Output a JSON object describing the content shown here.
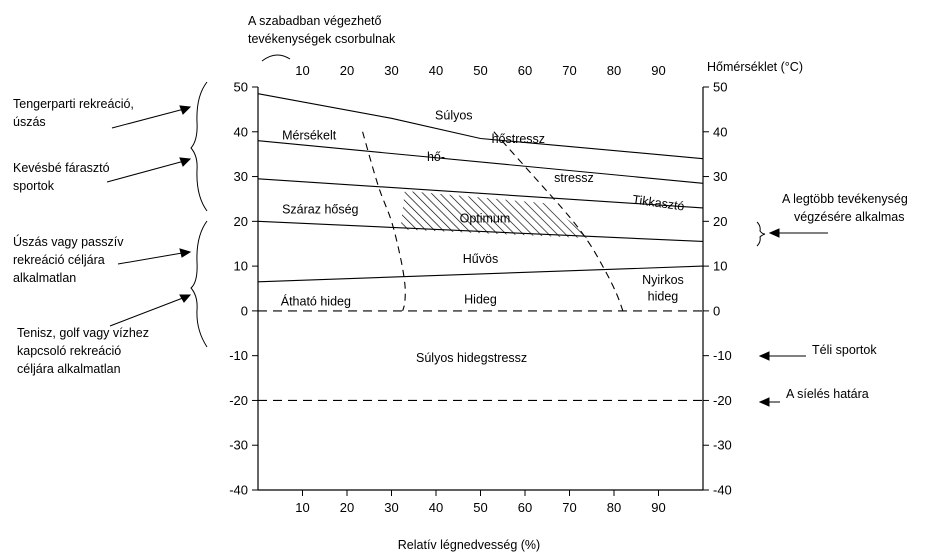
{
  "chart_data": {
    "type": "area",
    "title": "",
    "top_annotation": [
      "A szabadban végezhető",
      "tevékenységek csorbulnak"
    ],
    "xlabel_bottom": "Relatív légnedvesség (%)",
    "xlabel_top": "Hőmérséklet (°C)",
    "x_ticks": [
      10,
      20,
      30,
      40,
      50,
      60,
      70,
      80,
      90
    ],
    "y_ticks": [
      50,
      40,
      30,
      20,
      10,
      0,
      -10,
      -20,
      -30,
      -40
    ],
    "xlim": [
      0,
      100
    ],
    "ylim": [
      -40,
      50
    ],
    "boundary_lines": [
      {
        "x": [
          0,
          30,
          50,
          100
        ],
        "y": [
          48.5,
          43,
          38.5,
          34
        ]
      },
      {
        "x": [
          0,
          100
        ],
        "y": [
          38,
          28.5
        ]
      },
      {
        "x": [
          0,
          100
        ],
        "y": [
          29.5,
          23
        ]
      },
      {
        "x": [
          0,
          100
        ],
        "y": [
          20,
          15.5
        ]
      },
      {
        "x": [
          0,
          100
        ],
        "y": [
          6.5,
          10
        ]
      }
    ],
    "dashed_curves": [
      {
        "x": [
          23.5,
          27,
          30,
          32,
          33,
          33,
          32.5
        ],
        "y": [
          40,
          28,
          20,
          12,
          6,
          2,
          0
        ]
      },
      {
        "x": [
          53,
          62,
          70,
          74.5,
          78,
          80.5,
          82
        ],
        "y": [
          40,
          30,
          21,
          15,
          9,
          4,
          0
        ]
      }
    ],
    "dashed_hlines": [
      0,
      -20
    ],
    "optimum_polygon": {
      "x": [
        33,
        65,
        75,
        32
      ],
      "y": [
        26.8,
        24,
        16.2,
        18.2
      ]
    },
    "zone_labels": [
      {
        "text": "Súlyos",
        "x": 44,
        "y": 43.8
      },
      {
        "text": "hőstressz",
        "x": 58.5,
        "y": 38.5
      },
      {
        "text": "Mérsékelt",
        "x": 11.5,
        "y": 39.3
      },
      {
        "text": "hő-",
        "x": 40,
        "y": 34.5
      },
      {
        "text": "stressz",
        "x": 71,
        "y": 29.8
      },
      {
        "text": "Tikkasztó",
        "x": 90,
        "y": 24.2
      },
      {
        "text": "Száraz hőség",
        "x": 14,
        "y": 22.8
      },
      {
        "text": "Optimum",
        "x": 51,
        "y": 20.8
      },
      {
        "text": "Hűvös",
        "x": 50,
        "y": 11.7
      },
      {
        "text": "Nyirkos",
        "x": 91,
        "y": 7
      },
      {
        "text": "hideg",
        "x": 91,
        "y": 3.3
      },
      {
        "text": "Átható hideg",
        "x": 13,
        "y": 2.2
      },
      {
        "text": "Hideg",
        "x": 50,
        "y": 2.6
      },
      {
        "text": "Súlyos hidegstressz",
        "x": 48,
        "y": -10.4
      }
    ],
    "left_annotations": [
      {
        "lines": [
          "Tengerparti rekreáció,",
          "úszás"
        ]
      },
      {
        "lines": [
          "Kevésbé fárasztó",
          "sportok"
        ]
      },
      {
        "lines": [
          "Úszás vagy passzív",
          "rekreáció céljára",
          "alkalmatlan"
        ]
      },
      {
        "lines": [
          "Tenisz, golf vagy vízhez",
          "kapcsoló rekreáció",
          "céljára alkalmatlan"
        ]
      }
    ],
    "right_annotations": [
      {
        "lines": [
          "A legtöbb tevékenység",
          "végzésére alkalmas"
        ]
      },
      {
        "lines": [
          "Téli sportok"
        ]
      },
      {
        "lines": [
          "A síelés határa"
        ]
      }
    ]
  }
}
